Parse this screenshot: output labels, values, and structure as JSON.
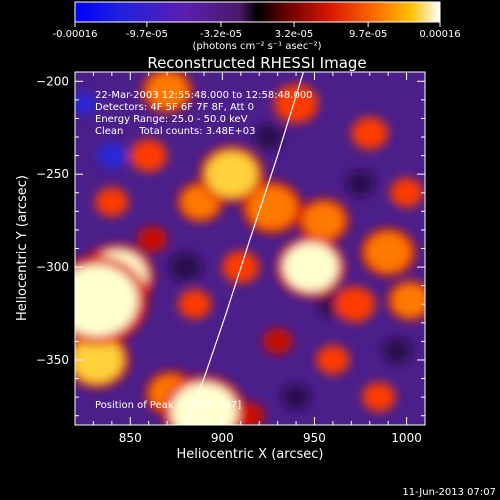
{
  "chart_data": {
    "type": "heatmap",
    "title": "Reconstructed RHESSI Image",
    "xlabel": "Heliocentric X (arcsec)",
    "ylabel": "Heliocentric Y (arcsec)",
    "xlim": [
      820,
      1010
    ],
    "ylim": [
      -385,
      -195
    ],
    "x_ticks": [
      850,
      900,
      950,
      1000
    ],
    "y_ticks": [
      -200,
      -250,
      -300,
      -350
    ],
    "colorbar": {
      "min": -0.00016,
      "max": 0.00016,
      "tick_values": [
        -0.00016,
        -9.7e-05,
        -3.2e-05,
        3.2e-05,
        9.7e-05,
        0.00016
      ],
      "tick_labels": [
        "-0.00016",
        "-9.7e-05",
        "-3.2e-05",
        "3.2e-05",
        "9.7e-05",
        "0.00016"
      ],
      "unit_label": "(photons cm⁻² s⁻¹ asec⁻²)"
    },
    "annotations": [
      "22-Mar-2003 12:55:48.000 to 12:58:48.000",
      "Detectors: 4F 5F 6F 7F 8F, Att 0",
      "Energy Range: 25.0 - 50.0 keV",
      "Clean     Total counts: 3.48E+03",
      "Position of Peak = [837,-197]"
    ],
    "blobs": [
      {
        "x": 832,
        "y": -318,
        "r": 22,
        "v": 1.0
      },
      {
        "x": 843,
        "y": -305,
        "r": 16,
        "v": 0.9
      },
      {
        "x": 832,
        "y": -350,
        "r": 14,
        "v": 0.75
      },
      {
        "x": 890,
        "y": -378,
        "r": 18,
        "v": 0.95
      },
      {
        "x": 872,
        "y": -368,
        "r": 11,
        "v": 0.7
      },
      {
        "x": 905,
        "y": -250,
        "r": 14,
        "v": 0.75
      },
      {
        "x": 888,
        "y": -265,
        "r": 10,
        "v": 0.6
      },
      {
        "x": 927,
        "y": -268,
        "r": 13,
        "v": 0.7
      },
      {
        "x": 948,
        "y": -300,
        "r": 15,
        "v": 0.9
      },
      {
        "x": 955,
        "y": -275,
        "r": 11,
        "v": 0.6
      },
      {
        "x": 972,
        "y": -320,
        "r": 11,
        "v": 0.55
      },
      {
        "x": 990,
        "y": -292,
        "r": 12,
        "v": 0.7
      },
      {
        "x": 1002,
        "y": -318,
        "r": 10,
        "v": 0.65
      },
      {
        "x": 960,
        "y": -350,
        "r": 9,
        "v": 0.45
      },
      {
        "x": 860,
        "y": -240,
        "r": 10,
        "v": 0.55
      },
      {
        "x": 870,
        "y": -205,
        "r": 11,
        "v": 0.6
      },
      {
        "x": 940,
        "y": -212,
        "r": 12,
        "v": 0.45
      },
      {
        "x": 980,
        "y": -228,
        "r": 10,
        "v": 0.55
      },
      {
        "x": 840,
        "y": -265,
        "r": 9,
        "v": 0.55
      },
      {
        "x": 910,
        "y": -300,
        "r": 10,
        "v": 0.5
      },
      {
        "x": 885,
        "y": -320,
        "r": 9,
        "v": 0.45
      },
      {
        "x": 1000,
        "y": -260,
        "r": 9,
        "v": 0.45
      },
      {
        "x": 930,
        "y": -340,
        "r": 8,
        "v": 0.35
      },
      {
        "x": 985,
        "y": -370,
        "r": 9,
        "v": 0.45
      },
      {
        "x": 915,
        "y": -380,
        "r": 8,
        "v": 0.35
      },
      {
        "x": 862,
        "y": -285,
        "r": 8,
        "v": 0.4
      },
      {
        "x": 840,
        "y": -240,
        "r": 8,
        "v": -0.5
      },
      {
        "x": 825,
        "y": -212,
        "r": 7,
        "v": -0.45
      },
      {
        "x": 880,
        "y": -300,
        "r": 9,
        "v": -0.25
      },
      {
        "x": 960,
        "y": -320,
        "r": 8,
        "v": -0.25
      },
      {
        "x": 975,
        "y": -255,
        "r": 8,
        "v": -0.3
      },
      {
        "x": 995,
        "y": -345,
        "r": 8,
        "v": -0.25
      },
      {
        "x": 925,
        "y": -230,
        "r": 8,
        "v": -0.25
      },
      {
        "x": 940,
        "y": -370,
        "r": 8,
        "v": -0.25
      }
    ],
    "limb_curve": {
      "x": [
        944,
        930,
        915,
        902,
        890,
        880
      ],
      "y": [
        -195,
        -240,
        -285,
        -325,
        -360,
        -385
      ]
    }
  },
  "footer": {
    "timestamp": "11-Jun-2013 07:07"
  }
}
